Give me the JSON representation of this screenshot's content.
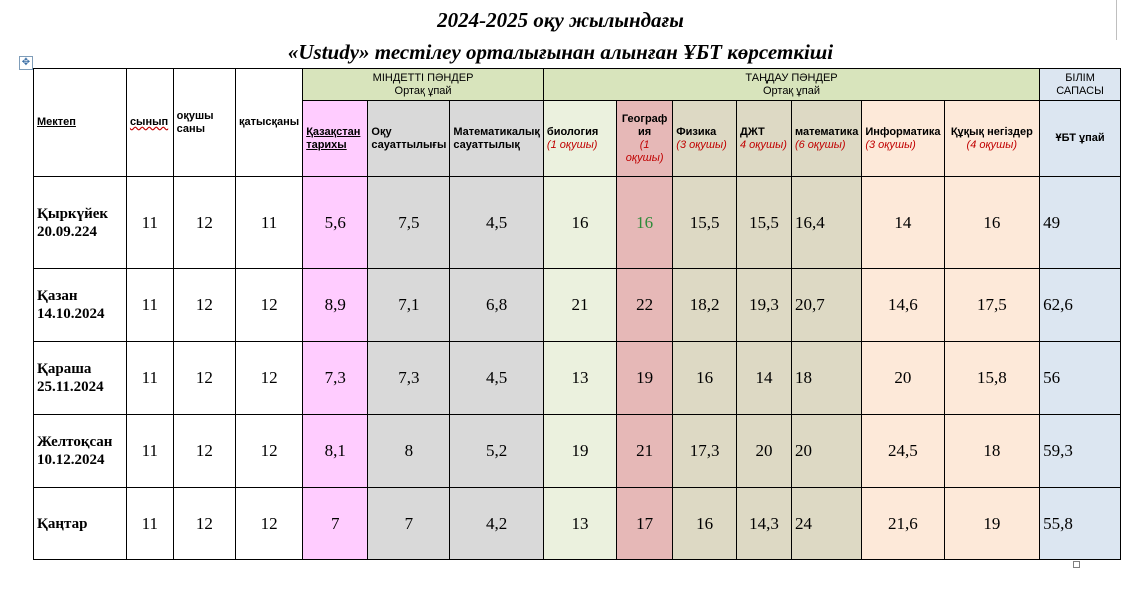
{
  "title": {
    "line1": "2024-2025 оқу жылындағы",
    "line2": "«Ustudy» тестілеу орталығынан алынған  ҰБТ көрсеткіші"
  },
  "table": {
    "group_headers": {
      "mandatory_title": "МІНДЕТТІ ПӘНДЕР",
      "mandatory_sub": "Ортақ ұпай",
      "elective_title": "ТАҢДАУ ПӘНДЕР",
      "elective_sub": "Ортақ ұпай",
      "quality_title": "БІЛІМ САПАСЫ"
    },
    "columns": {
      "school": "Мектеп",
      "grade": "сынып",
      "students": "оқушы саны",
      "attended": "қатысқаны",
      "history": "Қазақстан тарихы",
      "reading": "Оқу сауаттылығы",
      "math_lit": "Математикалық сауаттылық",
      "biology": "биология",
      "biology_note": "(1 оқушы)",
      "geography": "Географ ия",
      "geography_note": "(1 оқушы)",
      "physics": "Физика",
      "physics_note": "(3 оқушы)",
      "world_history": "ДЖТ",
      "world_history_note": "4 оқушы)",
      "mathematics": "математика",
      "mathematics_note": "(6 оқушы)",
      "informatics": "Информатика",
      "informatics_note": "(3 оқушы)",
      "law": "Құқық негіздер",
      "law_note": "(4 оқушы)",
      "ubt_score": "ҰБТ  ұпай"
    },
    "rows": [
      {
        "month": "Қыркүйек 20.09.224",
        "grade": "11",
        "students": "12",
        "attended": "11",
        "history": "5,6",
        "reading": "7,5",
        "math_lit": "4,5",
        "biology": "16",
        "geography": "16",
        "physics": "15,5",
        "world_history": "15,5",
        "mathematics": "16,4",
        "informatics": "14",
        "law": "16",
        "ubt": "49"
      },
      {
        "month": "Қазан 14.10.2024",
        "grade": "11",
        "students": "12",
        "attended": "12",
        "history": "8,9",
        "reading": "7,1",
        "math_lit": "6,8",
        "biology": "21",
        "geography": "22",
        "physics": "18,2",
        "world_history": "19,3",
        "mathematics": "20,7",
        "informatics": "14,6",
        "law": "17,5",
        "ubt": "62,6"
      },
      {
        "month": "Қараша 25.11.2024",
        "grade": "11",
        "students": "12",
        "attended": "12",
        "history": "7,3",
        "reading": "7,3",
        "math_lit": "4,5",
        "biology": "13",
        "geography": "19",
        "physics": "16",
        "world_history": "14",
        "mathematics": "18",
        "informatics": "20",
        "law": "15,8",
        "ubt": "56"
      },
      {
        "month": "Желтоқсан 10.12.2024",
        "grade": "11",
        "students": "12",
        "attended": "12",
        "history": "8,1",
        "reading": "8",
        "math_lit": "5,2",
        "biology": "19",
        "geography": "21",
        "physics": "17,3",
        "world_history": "20",
        "mathematics": "20",
        "informatics": "24,5",
        "law": "18",
        "ubt": "59,3"
      },
      {
        "month": "Қаңтар",
        "grade": "11",
        "students": "12",
        "attended": "12",
        "history": "7",
        "reading": "7",
        "math_lit": "4,2",
        "biology": "13",
        "geography": "17",
        "physics": "16",
        "world_history": "14,3",
        "mathematics": "24",
        "informatics": "21,6",
        "law": "19",
        "ubt": "55,8"
      }
    ]
  },
  "colors": {
    "mandatory_header": "#d8e4bc",
    "quality_header": "#dce6f1",
    "history": "#ffccff",
    "grey": "#d9d9d9",
    "geography": "#e6b8b7",
    "olive": "#ddd9c4",
    "peach": "#fde9d9",
    "note_red": "#c00000",
    "highlight_green": "#2e8b3a"
  }
}
